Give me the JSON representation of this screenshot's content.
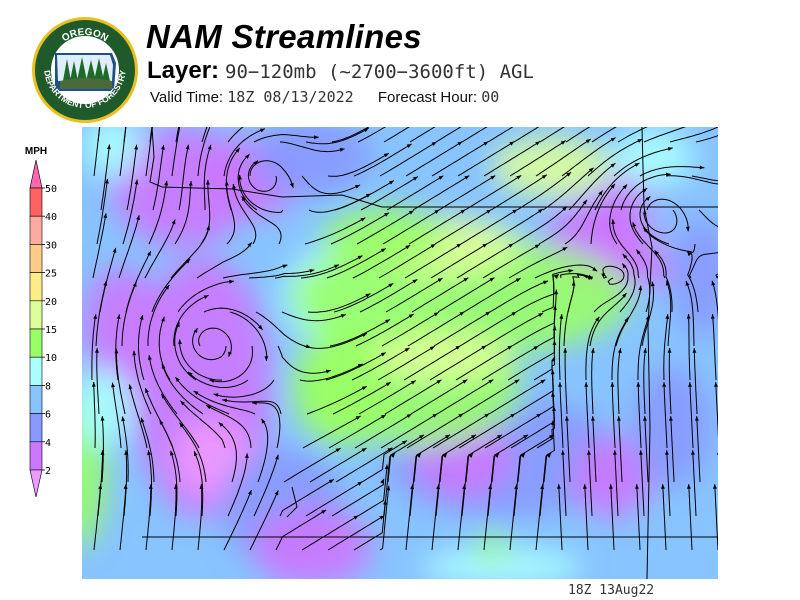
{
  "header": {
    "title": "NAM Streamlines",
    "layer_label": "Layer:",
    "layer_value": "90−120mb (~2700−3600ft) AGL",
    "valid_label": "Valid Time:",
    "valid_value": "18Z 08/13/2022",
    "forecast_label": "Forecast Hour:",
    "forecast_value": "00"
  },
  "logo": {
    "top_text": "OREGON",
    "bottom_text": "DEPARTMENT OF FORESTRY",
    "colors": {
      "ring": "#1e5a2a",
      "border": "#e8c020"
    }
  },
  "colorbar": {
    "unit": "MPH",
    "ticks": [
      "50",
      "40",
      "30",
      "25",
      "20",
      "15",
      "10",
      "8",
      "6",
      "4",
      "2"
    ],
    "colors": [
      "#ff66b0",
      "#ff6262",
      "#ffaaa0",
      "#ffcc88",
      "#ffee88",
      "#ddff99",
      "#99ff66",
      "#aaffff",
      "#88c4ff",
      "#8899ff",
      "#cc77ff",
      "#ee99ff"
    ]
  },
  "footer": {
    "timestamp": "18Z 13Aug22"
  }
}
